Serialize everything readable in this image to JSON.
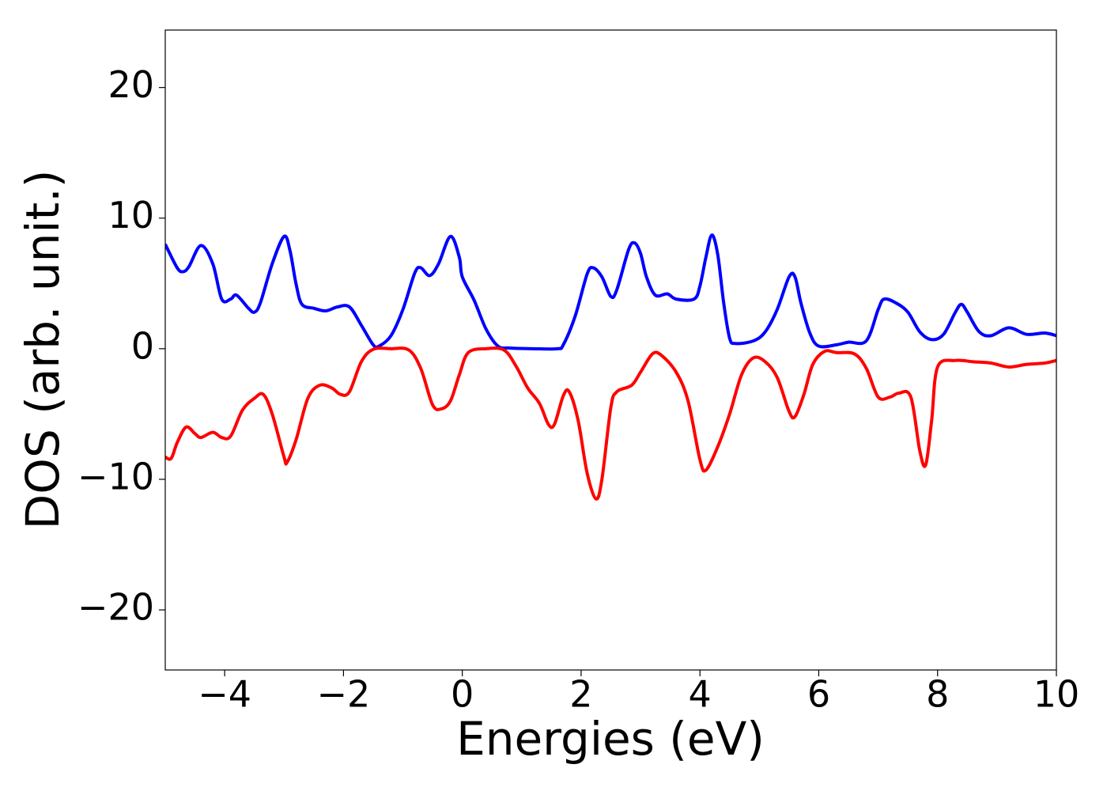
{
  "chart_data": {
    "type": "line",
    "xlabel": "Energies (eV)",
    "ylabel": "DOS (arb. unit.)",
    "xlim": [
      -5,
      10
    ],
    "ylim": [
      -24.6,
      24.4
    ],
    "xticks": [
      {
        "value": -4,
        "label": "−4"
      },
      {
        "value": -2,
        "label": "−2"
      },
      0,
      2,
      4,
      6,
      8,
      10
    ],
    "yticks": [
      {
        "value": -20,
        "label": "−20"
      },
      {
        "value": -10,
        "label": "−10"
      },
      0,
      10,
      20
    ],
    "series": [
      {
        "color": "#0000ff",
        "x": [
          -5,
          -4.8,
          -4.7,
          -4.6,
          -4.4,
          -4.2,
          -4.05,
          -3.9,
          -3.8,
          -3.6,
          -3.5,
          -3.4,
          -3.2,
          -3.0,
          -2.9,
          -2.8,
          -2.7,
          -2.5,
          -2.3,
          -2.1,
          -1.9,
          -1.7,
          -1.5,
          -1.4,
          -1.2,
          -1.0,
          -0.8,
          -0.7,
          -0.55,
          -0.4,
          -0.2,
          -0.05,
          0.0,
          0.2,
          0.4,
          0.6,
          0.8,
          1.2,
          1.6,
          1.7,
          1.9,
          2.1,
          2.2,
          2.35,
          2.5,
          2.6,
          2.8,
          2.9,
          3.0,
          3.1,
          3.25,
          3.45,
          3.6,
          3.9,
          4.0,
          4.1,
          4.2,
          4.3,
          4.4,
          4.5,
          4.6,
          4.9,
          5.1,
          5.3,
          5.5,
          5.6,
          5.7,
          5.85,
          6.0,
          6.3,
          6.5,
          6.8,
          7.0,
          7.1,
          7.3,
          7.5,
          7.7,
          7.9,
          8.1,
          8.3,
          8.4,
          8.5,
          8.7,
          8.9,
          9.2,
          9.5,
          9.8,
          10
        ],
        "values": [
          8,
          6.2,
          5.9,
          6.3,
          7.9,
          6.5,
          3.8,
          3.8,
          4.1,
          3.1,
          2.8,
          3.5,
          6.5,
          8.6,
          7.5,
          5,
          3.4,
          3.1,
          2.9,
          3.2,
          3.2,
          1.8,
          0.3,
          0.2,
          1.0,
          3.0,
          5.8,
          6.2,
          5.6,
          6.5,
          8.6,
          7.0,
          5.5,
          3.7,
          1.5,
          0.2,
          0.05,
          0,
          0,
          0.3,
          2.5,
          5.7,
          6.2,
          5.5,
          4.0,
          4.5,
          7.6,
          8.1,
          7.3,
          5.5,
          4.1,
          4.2,
          3.8,
          3.8,
          4.8,
          7.0,
          8.7,
          7.2,
          3.5,
          0.8,
          0.4,
          0.6,
          1.3,
          3.0,
          5.5,
          5.5,
          3.5,
          1.2,
          0.2,
          0.3,
          0.5,
          0.6,
          3.0,
          3.8,
          3.5,
          2.8,
          1.3,
          0.7,
          1.1,
          2.8,
          3.4,
          2.8,
          1.3,
          1.0,
          1.6,
          1.1,
          1.2,
          1.0
        ]
      },
      {
        "color": "#ff0000",
        "x": [
          -5,
          -4.9,
          -4.8,
          -4.65,
          -4.5,
          -4.4,
          -4.2,
          -4.05,
          -3.9,
          -3.7,
          -3.5,
          -3.35,
          -3.2,
          -3.0,
          -2.95,
          -2.8,
          -2.6,
          -2.4,
          -2.2,
          -2.05,
          -1.9,
          -1.7,
          -1.5,
          -1.2,
          -0.9,
          -0.7,
          -0.5,
          -0.35,
          -0.2,
          -0.05,
          0.1,
          0.4,
          0.7,
          0.9,
          1.1,
          1.3,
          1.45,
          1.55,
          1.7,
          1.8,
          1.95,
          2.1,
          2.25,
          2.35,
          2.5,
          2.6,
          2.85,
          3.0,
          3.2,
          3.35,
          3.6,
          3.8,
          4.0,
          4.1,
          4.3,
          4.5,
          4.7,
          4.9,
          5.1,
          5.3,
          5.5,
          5.6,
          5.75,
          5.9,
          6.1,
          6.3,
          6.6,
          6.8,
          7.0,
          7.2,
          7.35,
          7.55,
          7.7,
          7.8,
          7.9,
          8.0,
          8.3,
          8.6,
          8.9,
          9.2,
          9.5,
          9.8,
          10
        ],
        "values": [
          -8.3,
          -8.4,
          -7.2,
          -6.0,
          -6.5,
          -6.8,
          -6.4,
          -6.8,
          -6.7,
          -4.7,
          -3.8,
          -3.5,
          -5.0,
          -8.3,
          -8.7,
          -7.0,
          -3.8,
          -2.8,
          -3.0,
          -3.5,
          -3.3,
          -1.0,
          -0.05,
          0,
          -0.1,
          -1.5,
          -4.3,
          -4.6,
          -4.0,
          -2.0,
          -0.3,
          0,
          -0.1,
          -1.3,
          -3.0,
          -4.2,
          -5.8,
          -5.8,
          -3.6,
          -3.3,
          -5.5,
          -9.5,
          -11.5,
          -10.0,
          -4.5,
          -3.3,
          -2.8,
          -1.8,
          -0.4,
          -0.5,
          -1.8,
          -4.0,
          -8.5,
          -9.3,
          -7.5,
          -5.0,
          -2.0,
          -0.7,
          -1.0,
          -2.2,
          -4.8,
          -5.2,
          -3.5,
          -1.2,
          -0.2,
          -0.3,
          -0.4,
          -1.5,
          -3.7,
          -3.7,
          -3.4,
          -3.7,
          -7.8,
          -8.9,
          -5.5,
          -1.4,
          -0.9,
          -1.0,
          -1.1,
          -1.4,
          -1.2,
          -1.1,
          -0.9
        ]
      }
    ]
  }
}
